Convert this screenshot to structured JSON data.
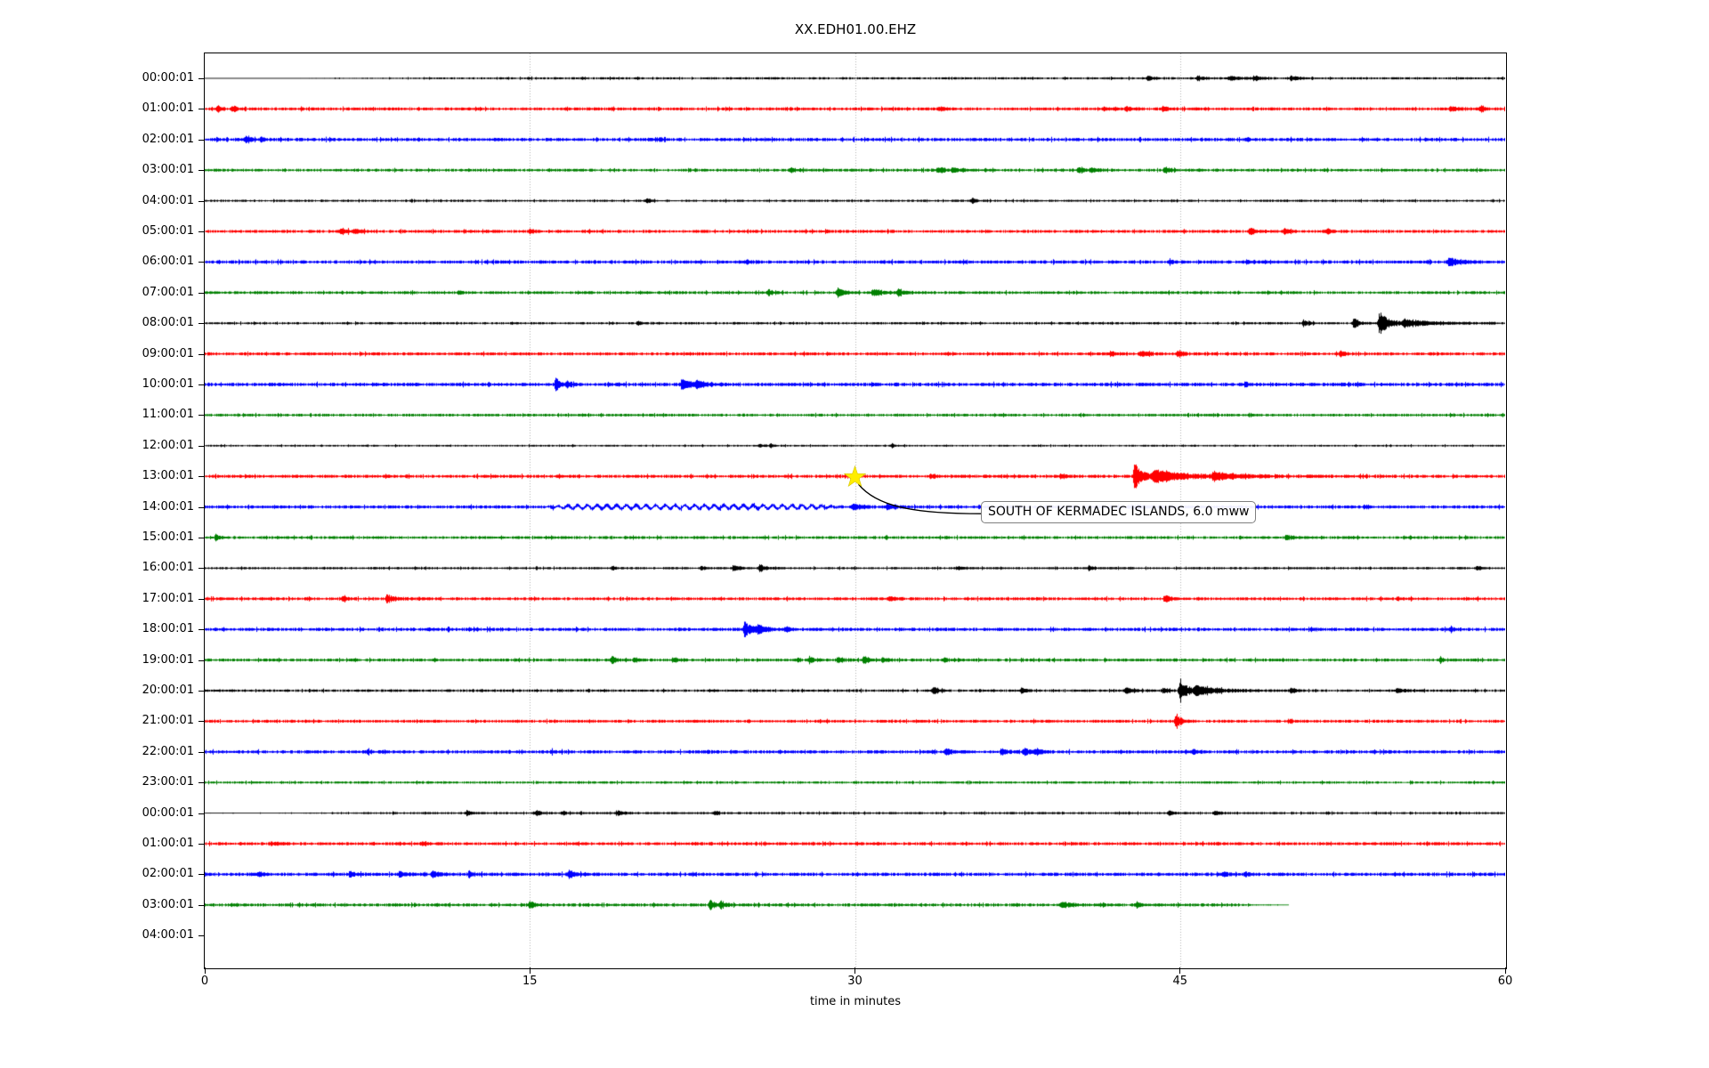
{
  "title": "XX.EDH01.00.EHZ",
  "xaxis": {
    "label": "time in minutes",
    "ticks": [
      "0",
      "15",
      "30",
      "45",
      "60"
    ]
  },
  "annotation": {
    "text": "SOUTH OF KERMADEC ISLANDS, 6.0 mww",
    "star_row": 13,
    "star_minute": 30,
    "star_color": "#ffed00"
  },
  "chart_data": {
    "type": "line",
    "title": "XX.EDH01.00.EHZ",
    "xlabel": "time in minutes",
    "x_range": [
      0,
      60
    ],
    "x_ticks": [
      0,
      15,
      30,
      45,
      60
    ],
    "grid_minutes": [
      15,
      30,
      45
    ],
    "grid_color": "#b0b0b0",
    "colors": {
      "k": "#000000",
      "r": "#ff0000",
      "b": "#0000ff",
      "g": "#008000"
    },
    "rows": [
      {
        "label": "00:00:01",
        "color": "k",
        "base": 1.0,
        "ramp": [
          13,
          0.3
        ],
        "end": 60,
        "events": [
          [
            43.5,
            2,
            0.3
          ],
          [
            45.8,
            2.5,
            0.3
          ],
          [
            47.3,
            2.5,
            0.4
          ],
          [
            48.4,
            2.5,
            0.3
          ],
          [
            50.1,
            2.5,
            0.4
          ]
        ]
      },
      {
        "label": "01:00:01",
        "color": "r",
        "base": 1.35,
        "end": 60,
        "events": [
          [
            0.6,
            5,
            0.12
          ],
          [
            1.3,
            4,
            0.12
          ],
          [
            33.9,
            2,
            0.2
          ],
          [
            41.5,
            2.5,
            0.2
          ],
          [
            42.5,
            2.5,
            0.2
          ],
          [
            44.2,
            3,
            0.25
          ],
          [
            57.5,
            2.5,
            0.3
          ],
          [
            58.9,
            5,
            0.15
          ]
        ]
      },
      {
        "label": "02:00:01",
        "color": "b",
        "base": 1.45,
        "end": 60,
        "events": [
          [
            1.9,
            3,
            0.2
          ],
          [
            2.6,
            2.5,
            0.15
          ],
          [
            21,
            2,
            0.1
          ],
          [
            48.1,
            2,
            0.12
          ]
        ]
      },
      {
        "label": "03:00:01",
        "color": "g",
        "base": 1.25,
        "end": 60,
        "events": [
          [
            27,
            2.5,
            0.3
          ],
          [
            33.8,
            3,
            0.4
          ],
          [
            34.5,
            2.5,
            0.3
          ],
          [
            40.3,
            3,
            0.35
          ],
          [
            40.9,
            2.5,
            0.25
          ],
          [
            44.3,
            3.5,
            0.3
          ]
        ]
      },
      {
        "label": "04:00:01",
        "color": "k",
        "base": 0.95,
        "end": 60,
        "events": [
          [
            20.4,
            3,
            0.12
          ],
          [
            35.4,
            3.5,
            0.15
          ]
        ]
      },
      {
        "label": "05:00:01",
        "color": "r",
        "base": 1.35,
        "end": 60,
        "events": [
          [
            6.3,
            3,
            0.35
          ],
          [
            6.9,
            2.5,
            0.2
          ],
          [
            15.0,
            3,
            0.15
          ],
          [
            48.2,
            3.5,
            0.3
          ],
          [
            49.8,
            3,
            0.2
          ],
          [
            51.8,
            3,
            0.15
          ]
        ]
      },
      {
        "label": "06:00:01",
        "color": "b",
        "base": 1.45,
        "end": 60,
        "events": [
          [
            25,
            2,
            0.15
          ],
          [
            44.5,
            2,
            0.2
          ],
          [
            48.1,
            2,
            0.15
          ],
          [
            57.4,
            5,
            0.45
          ]
        ]
      },
      {
        "label": "07:00:01",
        "color": "g",
        "base": 1.25,
        "end": 60,
        "events": [
          [
            11.7,
            2,
            0.15
          ],
          [
            26,
            3,
            0.2
          ],
          [
            29.2,
            5,
            0.3
          ],
          [
            30.8,
            4,
            0.45
          ],
          [
            32,
            3,
            0.3
          ]
        ]
      },
      {
        "label": "08:00:01",
        "color": "k",
        "base": 1.0,
        "end": 60,
        "events": [
          [
            20,
            2.5,
            0.12
          ],
          [
            50.7,
            4,
            0.2
          ],
          [
            53.0,
            6,
            0.25
          ],
          [
            54.2,
            12,
            0.45
          ],
          [
            55.3,
            4,
            1.3
          ]
        ]
      },
      {
        "label": "09:00:01",
        "color": "r",
        "base": 1.35,
        "end": 60,
        "events": [
          [
            41.8,
            3,
            0.2
          ],
          [
            43.2,
            3,
            0.3
          ],
          [
            44.9,
            3,
            0.25
          ],
          [
            52.4,
            3,
            0.2
          ]
        ]
      },
      {
        "label": "10:00:01",
        "color": "b",
        "base": 1.55,
        "end": 60,
        "events": [
          [
            16.2,
            9,
            0.12
          ],
          [
            16.7,
            4,
            0.2
          ],
          [
            22.0,
            5,
            0.5
          ],
          [
            22.7,
            4,
            0.35
          ],
          [
            48,
            2,
            0.2
          ]
        ]
      },
      {
        "label": "11:00:01",
        "color": "g",
        "base": 1.2,
        "end": 60,
        "events": []
      },
      {
        "label": "12:00:01",
        "color": "k",
        "base": 0.8,
        "end": 60,
        "events": [
          [
            25.6,
            2,
            0.2
          ],
          [
            26.1,
            2,
            0.15
          ],
          [
            31.7,
            2.5,
            0.1
          ]
        ]
      },
      {
        "label": "13:00:01",
        "color": "r",
        "base": 1.4,
        "end": 60,
        "events": [
          [
            33.5,
            2,
            0.3
          ],
          [
            39.5,
            2.5,
            0.2
          ],
          [
            42.9,
            14,
            0.4
          ],
          [
            43.8,
            7,
            1.3
          ],
          [
            46.5,
            3.5,
            1.4
          ]
        ]
      },
      {
        "label": "14:00:01",
        "color": "b",
        "base": 1.4,
        "end": 60,
        "wave": [
          15.5,
          29.5,
          2,
          0.45
        ],
        "events": [
          [
            29.9,
            4,
            0.3
          ],
          [
            31.5,
            4,
            0.15
          ],
          [
            43,
            2.5,
            0.3
          ],
          [
            53.5,
            2,
            0.2
          ]
        ]
      },
      {
        "label": "15:00:01",
        "color": "g",
        "base": 1.25,
        "end": 60,
        "events": [
          [
            0.5,
            3,
            0.15
          ],
          [
            49.9,
            3,
            0.25
          ]
        ]
      },
      {
        "label": "16:00:01",
        "color": "k",
        "base": 1.0,
        "end": 60,
        "events": [
          [
            18.8,
            2,
            0.15
          ],
          [
            22.9,
            2,
            0.2
          ],
          [
            24.4,
            3.5,
            0.25
          ],
          [
            25.6,
            4,
            0.3
          ],
          [
            34.8,
            2,
            0.2
          ],
          [
            40.8,
            3,
            0.2
          ],
          [
            58.7,
            2.5,
            0.2
          ]
        ]
      },
      {
        "label": "17:00:01",
        "color": "r",
        "base": 1.35,
        "end": 60,
        "events": [
          [
            6.4,
            3.5,
            0.15
          ],
          [
            8.4,
            5,
            0.3
          ],
          [
            31.6,
            2,
            0.25
          ],
          [
            44.3,
            4,
            0.25
          ],
          [
            55,
            2,
            0.2
          ]
        ]
      },
      {
        "label": "18:00:01",
        "color": "b",
        "base": 1.45,
        "end": 60,
        "events": [
          [
            24.9,
            8,
            0.35
          ],
          [
            25.5,
            4,
            0.4
          ],
          [
            26.8,
            2.5,
            0.2
          ],
          [
            57.5,
            2,
            0.2
          ]
        ]
      },
      {
        "label": "19:00:01",
        "color": "g",
        "base": 1.3,
        "end": 60,
        "events": [
          [
            18.8,
            4,
            0.15
          ],
          [
            19.8,
            3,
            0.15
          ],
          [
            21.6,
            2.5,
            0.3
          ],
          [
            27.9,
            4,
            0.2
          ],
          [
            29.2,
            3,
            0.3
          ],
          [
            30.4,
            4,
            0.25
          ],
          [
            31.3,
            3,
            0.2
          ],
          [
            34.1,
            2,
            0.15
          ],
          [
            57,
            2,
            0.2
          ]
        ]
      },
      {
        "label": "20:00:01",
        "color": "k",
        "base": 1.1,
        "end": 60,
        "events": [
          [
            33.6,
            4,
            0.2
          ],
          [
            37.7,
            3,
            0.2
          ],
          [
            42.5,
            3,
            0.3
          ],
          [
            44.2,
            3,
            0.25
          ],
          [
            45.0,
            14,
            0.3
          ],
          [
            45.7,
            5,
            1.1
          ],
          [
            50.1,
            3,
            0.2
          ],
          [
            55,
            2.5,
            0.3
          ]
        ]
      },
      {
        "label": "21:00:01",
        "color": "r",
        "base": 1.3,
        "end": 60,
        "events": [
          [
            44.8,
            9,
            0.2
          ],
          [
            50,
            2,
            0.2
          ]
        ]
      },
      {
        "label": "22:00:01",
        "color": "b",
        "base": 1.45,
        "end": 60,
        "events": [
          [
            7.5,
            2,
            0.15
          ],
          [
            16,
            2,
            0.15
          ],
          [
            34.2,
            3.5,
            0.25
          ],
          [
            36.8,
            3,
            0.3
          ],
          [
            37.8,
            4,
            0.35
          ],
          [
            38.3,
            3,
            0.2
          ],
          [
            45.6,
            3,
            0.2
          ]
        ]
      },
      {
        "label": "23:00:01",
        "color": "g",
        "base": 1.05,
        "end": 60,
        "events": []
      },
      {
        "label": "00:00:01",
        "color": "k",
        "base": 1.0,
        "ramp": [
          9,
          0.3
        ],
        "end": 60,
        "events": [
          [
            12.1,
            3,
            0.15
          ],
          [
            15.3,
            3,
            0.2
          ],
          [
            16.5,
            2.5,
            0.15
          ],
          [
            19,
            2.5,
            0.3
          ],
          [
            23.5,
            2,
            0.2
          ],
          [
            44.5,
            2.5,
            0.2
          ],
          [
            46.6,
            3,
            0.2
          ]
        ]
      },
      {
        "label": "01:00:01",
        "color": "r",
        "base": 1.35,
        "end": 60,
        "events": [
          [
            3,
            1.5,
            0.4
          ],
          [
            10,
            1.5,
            0.3
          ]
        ]
      },
      {
        "label": "02:00:01",
        "color": "b",
        "base": 1.5,
        "end": 60,
        "events": [
          [
            2.5,
            3.5,
            0.15
          ],
          [
            6.7,
            3,
            0.2
          ],
          [
            9,
            3,
            0.35
          ],
          [
            10.5,
            3,
            0.3
          ],
          [
            12.2,
            3.5,
            0.2
          ],
          [
            16.8,
            5,
            0.25
          ],
          [
            47,
            2.5,
            0.2
          ],
          [
            48,
            2,
            0.15
          ]
        ]
      },
      {
        "label": "03:00:01",
        "color": "g",
        "base": 1.35,
        "end": 50,
        "events": [
          [
            15.0,
            4.5,
            0.2
          ],
          [
            23.3,
            5,
            0.25
          ],
          [
            23.8,
            3,
            0.2
          ],
          [
            39.5,
            3.5,
            0.45
          ],
          [
            43,
            2.5,
            0.3
          ]
        ]
      },
      {
        "label": "04:00:01",
        "color": "k",
        "base": 1.0,
        "end": 0,
        "events": []
      }
    ]
  }
}
